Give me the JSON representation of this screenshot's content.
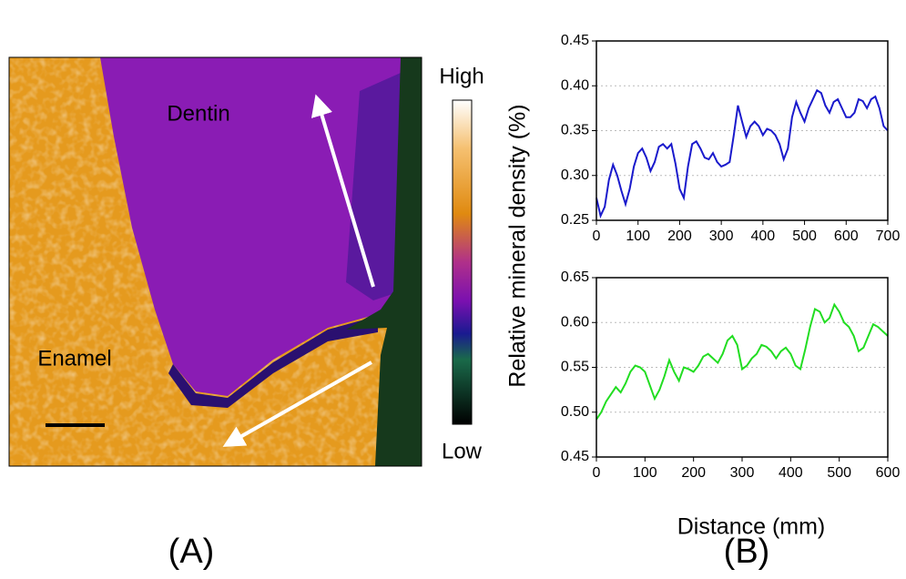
{
  "panel_a": {
    "region_labels": [
      "Dentin",
      "Enamel"
    ],
    "colorbar": {
      "high": "High",
      "low": "Low"
    }
  },
  "panel_labels": [
    "(A)",
    "(B)"
  ],
  "chart_data": [
    {
      "type": "line",
      "ylabel": "Relative mineral density (%)",
      "x": [
        0,
        10,
        20,
        30,
        40,
        50,
        60,
        70,
        80,
        90,
        100,
        110,
        120,
        130,
        140,
        150,
        160,
        170,
        180,
        190,
        200,
        210,
        220,
        230,
        240,
        250,
        260,
        270,
        280,
        290,
        300,
        310,
        320,
        330,
        340,
        350,
        360,
        370,
        380,
        390,
        400,
        410,
        420,
        430,
        440,
        450,
        460,
        470,
        480,
        490,
        500,
        510,
        520,
        530,
        540,
        550,
        560,
        570,
        580,
        590,
        600,
        610,
        620,
        630,
        640,
        650,
        660,
        670,
        680,
        690,
        700
      ],
      "series": [
        {
          "color": "#1a1acc",
          "values": [
            0.275,
            0.255,
            0.265,
            0.295,
            0.312,
            0.3,
            0.283,
            0.268,
            0.285,
            0.31,
            0.325,
            0.33,
            0.32,
            0.305,
            0.315,
            0.332,
            0.335,
            0.33,
            0.335,
            0.313,
            0.285,
            0.275,
            0.31,
            0.335,
            0.338,
            0.33,
            0.32,
            0.318,
            0.325,
            0.315,
            0.31,
            0.312,
            0.315,
            0.345,
            0.378,
            0.36,
            0.343,
            0.355,
            0.36,
            0.355,
            0.345,
            0.352,
            0.35,
            0.345,
            0.335,
            0.318,
            0.33,
            0.365,
            0.382,
            0.37,
            0.36,
            0.375,
            0.385,
            0.395,
            0.392,
            0.378,
            0.37,
            0.382,
            0.385,
            0.375,
            0.365,
            0.365,
            0.37,
            0.385,
            0.383,
            0.375,
            0.385,
            0.388,
            0.375,
            0.355,
            0.35
          ]
        }
      ],
      "xlim": [
        0,
        700
      ],
      "xticks": [
        0,
        100,
        200,
        300,
        400,
        500,
        600,
        700
      ],
      "ylim": [
        0.25,
        0.45
      ],
      "yticks": [
        0.25,
        {
          "value": 0.3,
          "label": "0.30"
        },
        0.35,
        {
          "value": 0.4,
          "label": "0.40"
        },
        0.45
      ],
      "grid": true
    },
    {
      "type": "line",
      "xlabel": "Distance (mm)",
      "x": [
        0,
        10,
        20,
        30,
        40,
        50,
        60,
        70,
        80,
        90,
        100,
        110,
        120,
        130,
        140,
        150,
        160,
        170,
        180,
        190,
        200,
        210,
        220,
        230,
        240,
        250,
        260,
        270,
        280,
        290,
        300,
        310,
        320,
        330,
        340,
        350,
        360,
        370,
        380,
        390,
        400,
        410,
        420,
        430,
        440,
        450,
        460,
        470,
        480,
        490,
        500,
        510,
        520,
        530,
        540,
        550,
        560,
        570,
        580,
        590,
        600
      ],
      "series": [
        {
          "color": "#22dd22",
          "values": [
            0.492,
            0.5,
            0.512,
            0.52,
            0.528,
            0.522,
            0.532,
            0.545,
            0.552,
            0.55,
            0.545,
            0.53,
            0.515,
            0.525,
            0.54,
            0.558,
            0.545,
            0.535,
            0.55,
            0.548,
            0.545,
            0.552,
            0.562,
            0.565,
            0.56,
            0.555,
            0.565,
            0.58,
            0.585,
            0.575,
            0.548,
            0.552,
            0.56,
            0.565,
            0.575,
            0.573,
            0.568,
            0.56,
            0.568,
            0.572,
            0.565,
            0.552,
            0.548,
            0.57,
            0.595,
            0.615,
            0.612,
            0.6,
            0.605,
            0.62,
            0.612,
            0.6,
            0.595,
            0.585,
            0.568,
            0.572,
            0.585,
            0.598,
            0.595,
            0.59,
            0.585
          ]
        }
      ],
      "xlim": [
        0,
        600
      ],
      "xticks": [
        0,
        100,
        200,
        300,
        400,
        500,
        600
      ],
      "ylim": [
        0.45,
        0.65
      ],
      "yticks": [
        0.45,
        {
          "value": 0.5,
          "label": "0.50"
        },
        0.55,
        {
          "value": 0.6,
          "label": "0.60"
        },
        0.65
      ],
      "grid": true
    }
  ]
}
